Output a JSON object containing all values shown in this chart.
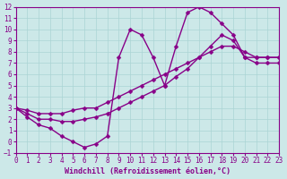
{
  "xlabel": "Windchill (Refroidissement éolien,°C)",
  "xlim": [
    0,
    23
  ],
  "ylim": [
    -1,
    12
  ],
  "xticks": [
    0,
    1,
    2,
    3,
    4,
    5,
    6,
    7,
    8,
    9,
    10,
    11,
    12,
    13,
    14,
    15,
    16,
    17,
    18,
    19,
    20,
    21,
    22,
    23
  ],
  "yticks": [
    -1,
    0,
    1,
    2,
    3,
    4,
    5,
    6,
    7,
    8,
    9,
    10,
    11,
    12
  ],
  "bg_color": "#cce8e8",
  "grid_color": "#aad4d4",
  "line_color": "#880088",
  "line1_x": [
    0,
    1,
    2,
    3,
    4,
    5,
    6,
    7,
    8,
    9,
    10,
    11,
    12,
    13,
    14,
    15,
    16,
    17,
    18,
    19,
    20,
    21,
    22,
    23
  ],
  "line1_y": [
    3.0,
    2.2,
    1.5,
    1.2,
    0.5,
    0.0,
    -0.5,
    -0.2,
    0.5,
    7.5,
    10.0,
    9.5,
    7.5,
    5.0,
    8.5,
    11.5,
    12.0,
    11.5,
    10.5,
    9.5,
    7.5,
    7.5,
    7.5,
    7.5
  ],
  "line2_x": [
    0,
    1,
    2,
    3,
    4,
    5,
    6,
    7,
    8,
    9,
    10,
    11,
    12,
    13,
    14,
    15,
    16,
    17,
    18,
    19,
    20,
    21,
    22,
    23
  ],
  "line2_y": [
    3.0,
    2.8,
    2.5,
    2.5,
    2.5,
    2.8,
    3.0,
    3.0,
    3.5,
    4.0,
    4.5,
    5.0,
    5.5,
    6.0,
    6.5,
    7.0,
    7.5,
    8.0,
    8.5,
    8.5,
    8.0,
    7.5,
    7.5,
    7.5
  ],
  "line3_x": [
    0,
    1,
    2,
    3,
    4,
    5,
    6,
    7,
    8,
    9,
    10,
    11,
    12,
    13,
    14,
    15,
    16,
    17,
    18,
    19,
    20,
    21,
    22,
    23
  ],
  "line3_y": [
    3.0,
    2.5,
    2.0,
    2.0,
    1.8,
    1.8,
    2.0,
    2.2,
    2.5,
    3.0,
    3.5,
    4.0,
    4.5,
    5.0,
    5.8,
    6.5,
    7.5,
    8.5,
    9.5,
    9.0,
    7.5,
    7.0,
    7.0,
    7.0
  ],
  "marker": "D",
  "markersize": 2.5,
  "linewidth": 1.0,
  "tick_fontsize": 5.5,
  "label_fontsize": 6.0,
  "font_family": "monospace"
}
